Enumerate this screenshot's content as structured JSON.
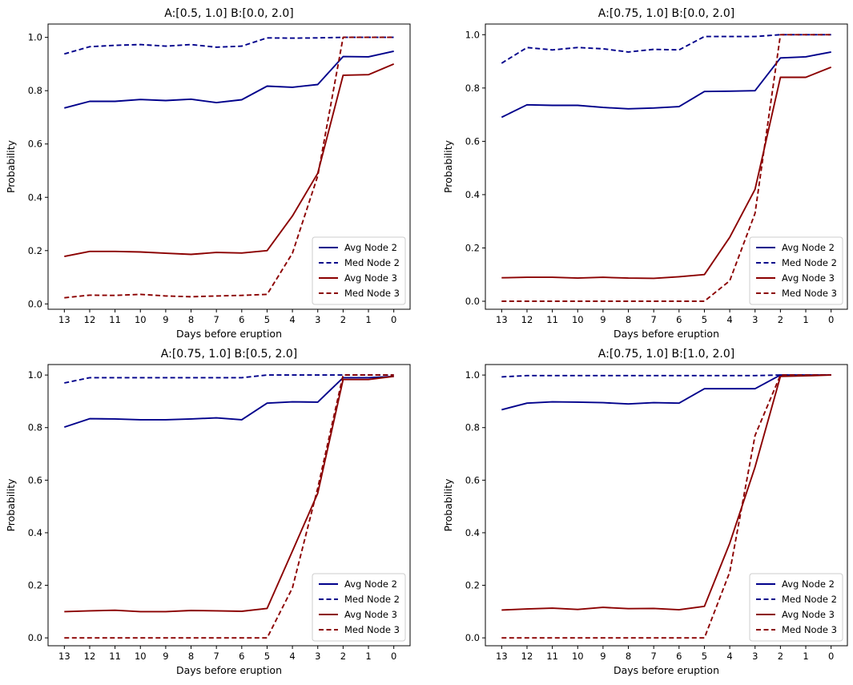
{
  "colors": {
    "node2": "#00008b",
    "node3": "#8b0000",
    "axes": "#000000",
    "legend_border": "#cccccc"
  },
  "chart_data": [
    {
      "type": "line",
      "title": "A:[0.5, 1.0] B:[0.0, 2.0]",
      "xlabel": "Days before eruption",
      "ylabel": "Probability",
      "categories": [
        "13",
        "12",
        "11",
        "10",
        "9",
        "8",
        "7",
        "6",
        "5",
        "4",
        "3",
        "2",
        "1",
        "0"
      ],
      "ylim": [
        -0.02,
        1.05
      ],
      "yticks": [
        "0.0",
        "0.2",
        "0.4",
        "0.6",
        "0.8",
        "1.0"
      ],
      "legend_position": "lower-right",
      "series": [
        {
          "name": "Avg Node 2",
          "color": "node2",
          "dash": false,
          "values": [
            0.735,
            0.76,
            0.76,
            0.767,
            0.763,
            0.768,
            0.755,
            0.766,
            0.817,
            0.813,
            0.823,
            0.928,
            0.927,
            0.948
          ]
        },
        {
          "name": "Med Node 2",
          "color": "node2",
          "dash": true,
          "values": [
            0.938,
            0.965,
            0.97,
            0.973,
            0.967,
            0.973,
            0.963,
            0.967,
            0.998,
            0.997,
            0.998,
            1.0,
            1.0,
            1.0
          ]
        },
        {
          "name": "Avg Node 3",
          "color": "node3",
          "dash": false,
          "values": [
            0.178,
            0.197,
            0.197,
            0.195,
            0.19,
            0.186,
            0.193,
            0.191,
            0.2,
            0.33,
            0.49,
            0.858,
            0.86,
            0.9
          ]
        },
        {
          "name": "Med Node 3",
          "color": "node3",
          "dash": true,
          "values": [
            0.023,
            0.033,
            0.032,
            0.036,
            0.03,
            0.027,
            0.03,
            0.032,
            0.036,
            0.19,
            0.48,
            1.0,
            1.0,
            1.0
          ]
        }
      ]
    },
    {
      "type": "line",
      "title": "A:[0.75, 1.0] B:[0.0, 2.0]",
      "xlabel": "Days before eruption",
      "ylabel": "Probability",
      "categories": [
        "13",
        "12",
        "11",
        "10",
        "9",
        "8",
        "7",
        "6",
        "5",
        "4",
        "3",
        "2",
        "1",
        "0"
      ],
      "ylim": [
        -0.03,
        1.04
      ],
      "yticks": [
        "0.0",
        "0.2",
        "0.4",
        "0.6",
        "0.8",
        "1.0"
      ],
      "legend_position": "lower-right",
      "series": [
        {
          "name": "Avg Node 2",
          "color": "node2",
          "dash": false,
          "values": [
            0.69,
            0.737,
            0.735,
            0.735,
            0.727,
            0.722,
            0.725,
            0.73,
            0.787,
            0.788,
            0.79,
            0.913,
            0.917,
            0.935
          ]
        },
        {
          "name": "Med Node 2",
          "color": "node2",
          "dash": true,
          "values": [
            0.893,
            0.952,
            0.943,
            0.952,
            0.947,
            0.935,
            0.945,
            0.943,
            0.993,
            0.993,
            0.993,
            1.0,
            1.0,
            1.0
          ]
        },
        {
          "name": "Avg Node 3",
          "color": "node3",
          "dash": false,
          "values": [
            0.088,
            0.09,
            0.09,
            0.087,
            0.09,
            0.087,
            0.086,
            0.092,
            0.1,
            0.24,
            0.42,
            0.84,
            0.84,
            0.878
          ]
        },
        {
          "name": "Med Node 3",
          "color": "node3",
          "dash": true,
          "values": [
            0.0,
            0.0,
            0.0,
            0.0,
            0.0,
            0.0,
            0.0,
            0.0,
            0.0,
            0.077,
            0.33,
            1.0,
            1.0,
            1.0
          ]
        }
      ]
    },
    {
      "type": "line",
      "title": "A:[0.75, 1.0] B:[0.5, 2.0]",
      "xlabel": "Days before eruption",
      "ylabel": "Probability",
      "categories": [
        "13",
        "12",
        "11",
        "10",
        "9",
        "8",
        "7",
        "6",
        "5",
        "4",
        "3",
        "2",
        "1",
        "0"
      ],
      "ylim": [
        -0.03,
        1.04
      ],
      "yticks": [
        "0.0",
        "0.2",
        "0.4",
        "0.6",
        "0.8",
        "1.0"
      ],
      "legend_position": "lower-right",
      "series": [
        {
          "name": "Avg Node 2",
          "color": "node2",
          "dash": false,
          "values": [
            0.802,
            0.834,
            0.833,
            0.83,
            0.83,
            0.833,
            0.837,
            0.83,
            0.893,
            0.898,
            0.897,
            0.99,
            0.99,
            0.995
          ]
        },
        {
          "name": "Med Node 2",
          "color": "node2",
          "dash": true,
          "values": [
            0.97,
            0.99,
            0.99,
            0.99,
            0.99,
            0.99,
            0.99,
            0.99,
            1.0,
            1.0,
            1.0,
            1.0,
            1.0,
            1.0
          ]
        },
        {
          "name": "Avg Node 3",
          "color": "node3",
          "dash": false,
          "values": [
            0.1,
            0.103,
            0.105,
            0.1,
            0.1,
            0.104,
            0.103,
            0.101,
            0.112,
            0.33,
            0.55,
            0.983,
            0.983,
            0.995
          ]
        },
        {
          "name": "Med Node 3",
          "color": "node3",
          "dash": true,
          "values": [
            0.0,
            0.0,
            0.0,
            0.0,
            0.0,
            0.0,
            0.0,
            0.0,
            0.0,
            0.19,
            0.57,
            1.0,
            1.0,
            1.0
          ]
        }
      ]
    },
    {
      "type": "line",
      "title": "A:[0.75, 1.0] B:[1.0, 2.0]",
      "xlabel": "Days before eruption",
      "ylabel": "Probability",
      "categories": [
        "13",
        "12",
        "11",
        "10",
        "9",
        "8",
        "7",
        "6",
        "5",
        "4",
        "3",
        "2",
        "1",
        "0"
      ],
      "ylim": [
        -0.03,
        1.04
      ],
      "yticks": [
        "0.0",
        "0.2",
        "0.4",
        "0.6",
        "0.8",
        "1.0"
      ],
      "legend_position": "lower-right",
      "series": [
        {
          "name": "Avg Node 2",
          "color": "node2",
          "dash": false,
          "values": [
            0.868,
            0.893,
            0.898,
            0.897,
            0.895,
            0.89,
            0.895,
            0.893,
            0.948,
            0.948,
            0.948,
            1.0,
            1.0,
            1.0
          ]
        },
        {
          "name": "Med Node 2",
          "color": "node2",
          "dash": true,
          "values": [
            0.993,
            0.998,
            0.998,
            0.998,
            0.998,
            0.998,
            0.998,
            0.998,
            0.998,
            0.998,
            0.998,
            1.0,
            1.0,
            1.0
          ]
        },
        {
          "name": "Avg Node 3",
          "color": "node3",
          "dash": false,
          "values": [
            0.106,
            0.11,
            0.113,
            0.108,
            0.116,
            0.111,
            0.112,
            0.107,
            0.12,
            0.36,
            0.65,
            0.995,
            0.997,
            1.0
          ]
        },
        {
          "name": "Med Node 3",
          "color": "node3",
          "dash": true,
          "values": [
            0.0,
            0.0,
            0.0,
            0.0,
            0.0,
            0.0,
            0.0,
            0.0,
            0.0,
            0.25,
            0.77,
            1.0,
            1.0,
            1.0
          ]
        }
      ]
    }
  ]
}
